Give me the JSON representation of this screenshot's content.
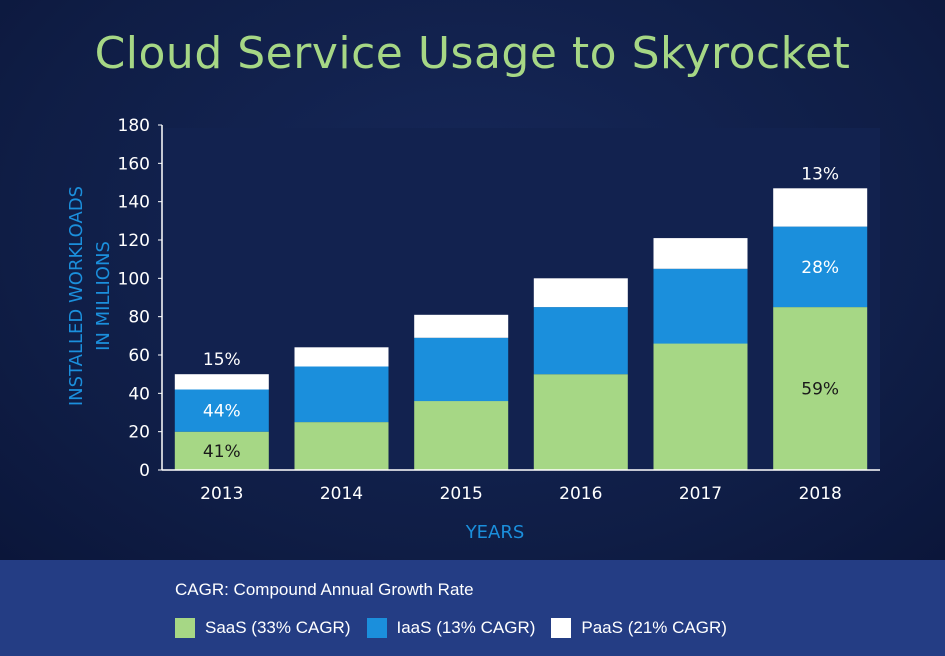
{
  "title": "Cloud Service Usage to Skyrocket",
  "footer": {
    "note": "CAGR: Compound Annual Growth Rate"
  },
  "chart_data": {
    "type": "bar",
    "stacked": true,
    "title": "Cloud Service Usage to Skyrocket",
    "xlabel": "YEARS",
    "ylabel": "INSTALLED WORKLOADS IN MILLIONS",
    "ylabel_lines": [
      "INSTALLED WORKLOADS",
      "IN MILLIONS"
    ],
    "ylim": [
      0,
      180
    ],
    "yticks": [
      0,
      20,
      40,
      60,
      80,
      100,
      120,
      140,
      160,
      180
    ],
    "grid": false,
    "legend_position": "bottom",
    "categories": [
      "2013",
      "2014",
      "2015",
      "2016",
      "2017",
      "2018"
    ],
    "series": [
      {
        "name": "SaaS (33% CAGR)",
        "color": "#a6d785",
        "values": [
          20,
          25,
          36,
          50,
          66,
          85
        ]
      },
      {
        "name": "IaaS (13% CAGR)",
        "color": "#1b8fdc",
        "values": [
          22,
          29,
          33,
          35,
          39,
          42
        ]
      },
      {
        "name": "PaaS (21% CAGR)",
        "color": "#ffffff",
        "values": [
          8,
          10,
          12,
          15,
          16,
          20
        ]
      }
    ],
    "annotations": [
      {
        "category": "2013",
        "series": "SaaS (33% CAGR)",
        "text": "41%",
        "placement": "inside"
      },
      {
        "category": "2013",
        "series": "IaaS (13% CAGR)",
        "text": "44%",
        "placement": "inside"
      },
      {
        "category": "2013",
        "series": "PaaS (21% CAGR)",
        "text": "15%",
        "placement": "above"
      },
      {
        "category": "2018",
        "series": "SaaS (33% CAGR)",
        "text": "59%",
        "placement": "inside"
      },
      {
        "category": "2018",
        "series": "IaaS (13% CAGR)",
        "text": "28%",
        "placement": "inside"
      },
      {
        "category": "2018",
        "series": "PaaS (21% CAGR)",
        "text": "13%",
        "placement": "above"
      }
    ]
  }
}
